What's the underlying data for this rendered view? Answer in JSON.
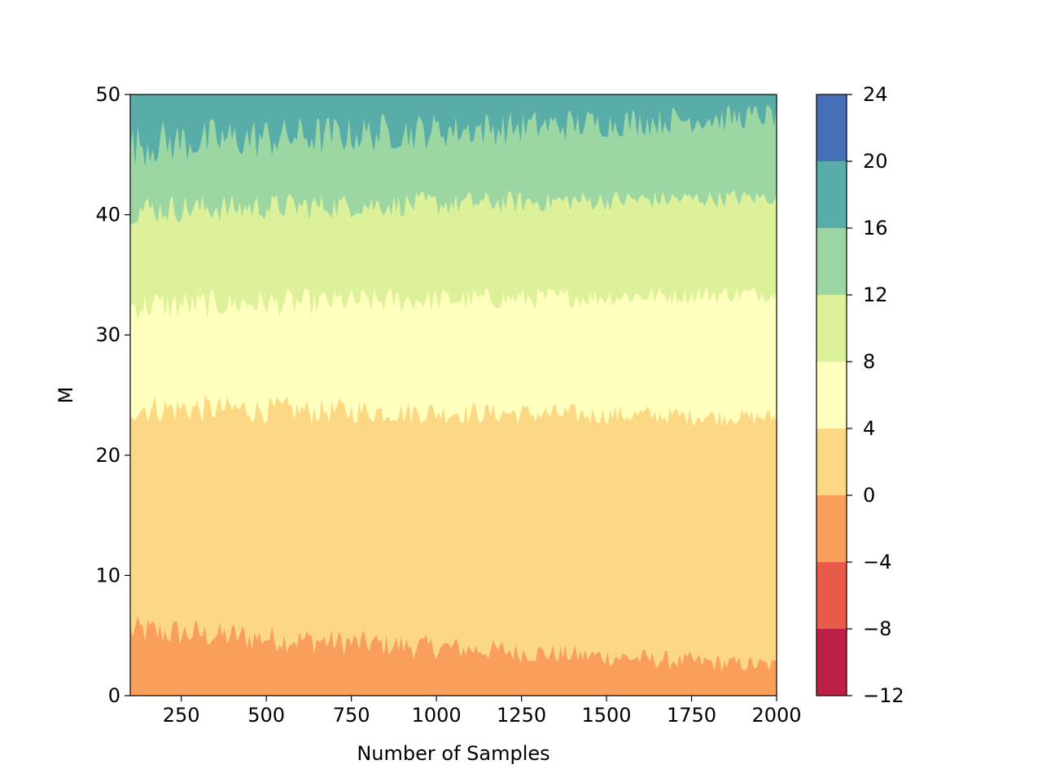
{
  "chart_data": {
    "type": "heatmap",
    "subtype": "filled-contour",
    "title": "",
    "xlabel": "Number of Samples",
    "ylabel": "M",
    "xlim": [
      100,
      2000
    ],
    "ylim": [
      0,
      50
    ],
    "xticks": [
      250,
      500,
      750,
      1000,
      1250,
      1500,
      1750,
      2000
    ],
    "yticks": [
      0,
      10,
      20,
      30,
      40,
      50
    ],
    "colorbar": {
      "levels": [
        -12,
        -8,
        -4,
        0,
        4,
        8,
        12,
        16,
        20,
        24
      ],
      "colors": [
        "#be2045",
        "#e75b4b",
        "#f99e5b",
        "#fcd885",
        "#ffffbe",
        "#dcf199",
        "#9cd6a3",
        "#58ada9",
        "#476fb6"
      ]
    },
    "bands": [
      {
        "level_range": [
          -4,
          0
        ],
        "color": "#f99e5b",
        "from_m": 0,
        "to_m_at_xmin": 5.5,
        "to_m_at_xmax": 2.5
      },
      {
        "level_range": [
          0,
          4
        ],
        "color": "#fcd885",
        "from_m_at_xmin": 5.5,
        "from_m_at_xmax": 2.5,
        "to_m_at_xmin": 24,
        "to_m_at_xmax": 23.2
      },
      {
        "level_range": [
          4,
          8
        ],
        "color": "#ffffbe",
        "from_m_at_xmin": 24,
        "from_m_at_xmax": 23.2,
        "to_m_at_xmin": 32.5,
        "to_m_at_xmax": 33.5
      },
      {
        "level_range": [
          8,
          12
        ],
        "color": "#dcf199",
        "from_m_at_xmin": 32.5,
        "from_m_at_xmax": 33.5,
        "to_m_at_xmin": 40.5,
        "to_m_at_xmax": 41.5
      },
      {
        "level_range": [
          12,
          16
        ],
        "color": "#9cd6a3",
        "from_m_at_xmin": 40.5,
        "from_m_at_xmax": 41.5,
        "to_m_at_xmin": 46,
        "to_m_at_xmax": 48.3
      },
      {
        "level_range": [
          16,
          20
        ],
        "color": "#58ada9",
        "from_m_at_xmin": 46,
        "from_m_at_xmax": 48.3,
        "to_m": 50
      }
    ]
  }
}
